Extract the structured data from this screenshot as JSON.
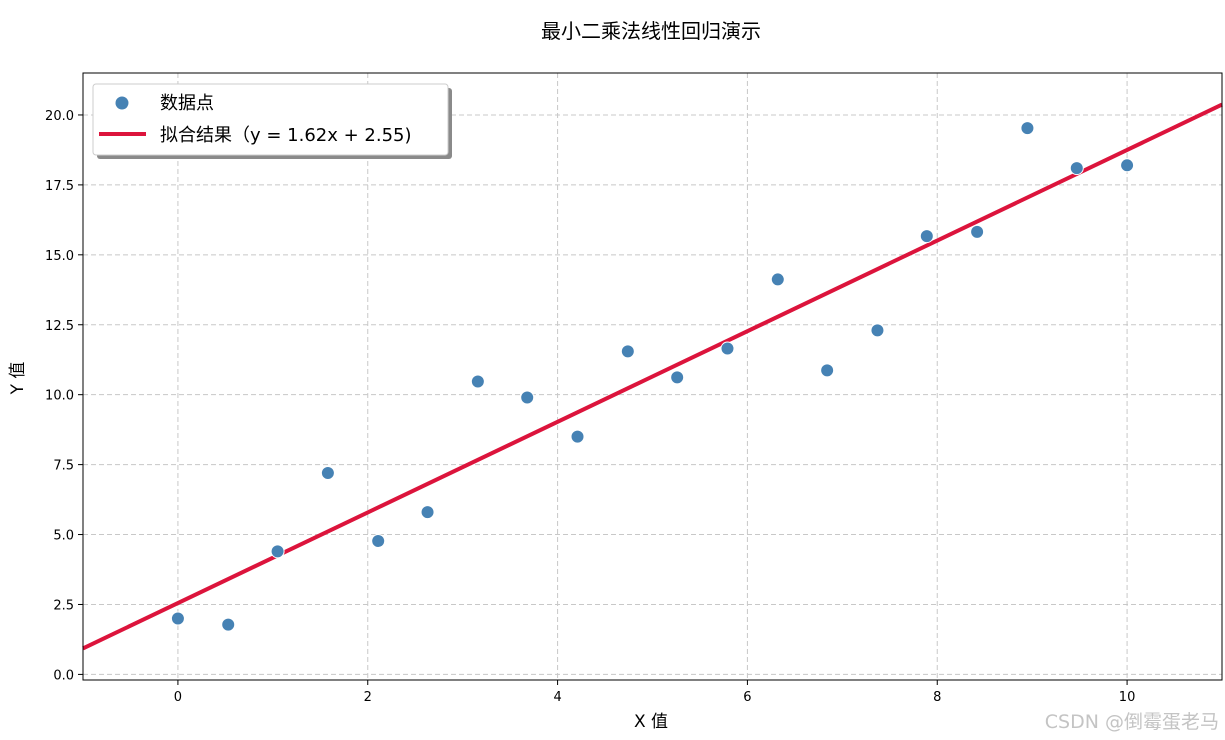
{
  "watermark": "CSDN @倒霉蛋老马",
  "colors": {
    "points": "#4682b4",
    "fit_line": "#dc143c",
    "grid": "#c8c8c8",
    "axes": "#000000"
  },
  "chart_data": {
    "type": "scatter",
    "title": "最小二乘法线性回归演示",
    "xlabel": "X 值",
    "ylabel": "Y 值",
    "xlim": [
      -1.0,
      11.0
    ],
    "ylim": [
      -0.2,
      21.5
    ],
    "x_ticks": [
      0,
      2,
      4,
      6,
      8,
      10
    ],
    "x_tick_labels": [
      "0",
      "2",
      "4",
      "6",
      "8",
      "10"
    ],
    "y_ticks": [
      0.0,
      2.5,
      5.0,
      7.5,
      10.0,
      12.5,
      15.0,
      17.5,
      20.0
    ],
    "y_tick_labels": [
      "0.0",
      "2.5",
      "5.0",
      "7.5",
      "10.0",
      "12.5",
      "15.0",
      "17.5",
      "20.0"
    ],
    "grid": true,
    "grid_style": "dashed",
    "legend_position": "top-left",
    "series": [
      {
        "name": "数据点",
        "kind": "scatter",
        "x": [
          0.0,
          0.53,
          1.05,
          1.58,
          2.11,
          2.63,
          3.16,
          3.68,
          4.21,
          4.74,
          5.26,
          5.79,
          6.32,
          6.84,
          7.37,
          7.89,
          8.42,
          8.95,
          9.47,
          10.0
        ],
        "y": [
          2.0,
          1.78,
          4.4,
          7.2,
          4.77,
          5.8,
          10.47,
          9.9,
          8.5,
          11.55,
          10.62,
          11.65,
          14.12,
          10.87,
          12.3,
          15.67,
          15.82,
          19.53,
          18.1,
          18.2
        ]
      },
      {
        "name": "拟合结果（y = 1.62x + 2.55)",
        "kind": "line",
        "slope": 1.62,
        "intercept": 2.55
      }
    ]
  }
}
